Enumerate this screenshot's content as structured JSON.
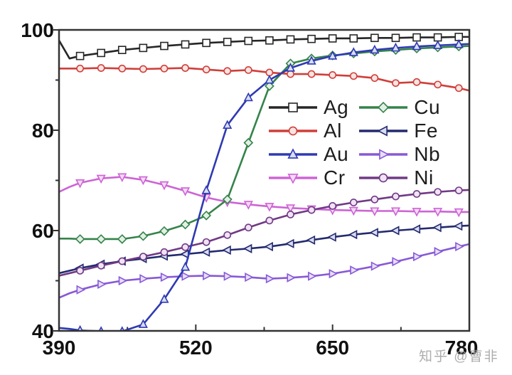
{
  "watermark": {
    "text": "知乎 @曹非",
    "color": "#a8a8a8"
  },
  "frame_color": "#333333",
  "tick_label_color": "#111111",
  "chart_data": {
    "type": "line",
    "title": "",
    "xlabel": "",
    "ylabel": "",
    "xlim": [
      390,
      780
    ],
    "ylim": [
      40,
      100
    ],
    "xticks": [
      390,
      520,
      650,
      780
    ],
    "xticks_minor": [
      455,
      585,
      715
    ],
    "yticks": [
      100,
      80,
      60,
      40
    ],
    "yticks_minor": [
      90,
      70,
      50
    ],
    "grid": false,
    "legend_position": "inside upper-right",
    "x": [
      390,
      400,
      410,
      430,
      450,
      470,
      490,
      510,
      530,
      550,
      570,
      590,
      610,
      630,
      650,
      670,
      690,
      710,
      730,
      750,
      770,
      780
    ],
    "series": [
      {
        "name": "Ag",
        "color": "#262626",
        "marker": "square",
        "marker_fill": "#ffffff",
        "values": [
          97.9,
          94.3,
          94.8,
          95.4,
          96.0,
          96.4,
          96.8,
          97.1,
          97.4,
          97.6,
          97.8,
          97.9,
          98.1,
          98.2,
          98.3,
          98.3,
          98.4,
          98.4,
          98.5,
          98.5,
          98.6,
          98.6
        ]
      },
      {
        "name": "Al",
        "color": "#cf3f3a",
        "marker": "circle",
        "marker_fill": "#f8e4e2",
        "values": [
          92.3,
          92.3,
          92.3,
          92.4,
          92.3,
          92.2,
          92.3,
          92.4,
          92.1,
          91.8,
          92.0,
          91.5,
          91.2,
          91.2,
          91.0,
          90.8,
          90.4,
          89.4,
          89.6,
          89.1,
          88.4,
          87.9
        ]
      },
      {
        "name": "Au",
        "color": "#2f3ab2",
        "marker": "triangle-up",
        "marker_fill": "#d8ddf5",
        "values": [
          40.6,
          40.4,
          40.1,
          39.9,
          39.9,
          41.3,
          46.3,
          52.7,
          68.0,
          81.0,
          86.5,
          90.0,
          92.4,
          93.8,
          94.8,
          95.5,
          96.0,
          96.4,
          96.7,
          96.9,
          97.1,
          97.2
        ]
      },
      {
        "name": "Cr",
        "color": "#cd64d4",
        "marker": "triangle-down",
        "marker_fill": "#f3d9f7",
        "values": [
          67.7,
          68.7,
          69.5,
          70.4,
          70.7,
          70.1,
          69.1,
          67.9,
          66.6,
          65.7,
          65.2,
          64.8,
          64.5,
          64.3,
          64.1,
          64.0,
          63.9,
          63.9,
          63.8,
          63.8,
          63.7,
          63.7
        ]
      },
      {
        "name": "Cu",
        "color": "#35834a",
        "marker": "diamond",
        "marker_fill": "#e3f0e5",
        "values": [
          58.4,
          58.4,
          58.3,
          58.3,
          58.3,
          58.9,
          59.9,
          61.2,
          63.0,
          66.2,
          77.5,
          88.8,
          93.3,
          94.3,
          94.9,
          95.3,
          95.7,
          96.0,
          96.3,
          96.5,
          96.7,
          96.8
        ]
      },
      {
        "name": "Fe",
        "color": "#232a6e",
        "marker": "triangle-left",
        "marker_fill": "#d9dcf2",
        "values": [
          51.5,
          52.0,
          52.5,
          53.3,
          53.9,
          54.4,
          54.9,
          55.3,
          55.7,
          56.1,
          56.4,
          56.8,
          57.4,
          58.1,
          58.7,
          59.2,
          59.6,
          60.0,
          60.3,
          60.6,
          60.9,
          61.0
        ]
      },
      {
        "name": "Nb",
        "color": "#8859d6",
        "marker": "triangle-right",
        "marker_fill": "#e7def8",
        "values": [
          46.6,
          47.5,
          48.2,
          49.3,
          50.0,
          50.4,
          50.7,
          50.9,
          51.0,
          50.9,
          50.7,
          50.4,
          50.6,
          50.9,
          51.4,
          52.1,
          52.9,
          53.8,
          54.8,
          55.8,
          56.8,
          57.3
        ]
      },
      {
        "name": "Ni",
        "color": "#713a85",
        "marker": "circle",
        "marker_fill": "#f0e4f4",
        "values": [
          51.0,
          51.5,
          52.0,
          53.0,
          53.9,
          54.8,
          55.7,
          56.7,
          57.7,
          59.1,
          60.6,
          62.0,
          63.2,
          64.1,
          64.9,
          65.6,
          66.2,
          66.8,
          67.3,
          67.7,
          68.0,
          68.1
        ]
      }
    ],
    "legend_columns": [
      [
        "Ag",
        "Al",
        "Au",
        "Cr"
      ],
      [
        "Cu",
        "Fe",
        "Nb",
        "Ni"
      ]
    ],
    "draw_order": [
      "Ag",
      "Al",
      "Cr",
      "Fe",
      "Nb",
      "Ni",
      "Cu",
      "Au"
    ]
  }
}
